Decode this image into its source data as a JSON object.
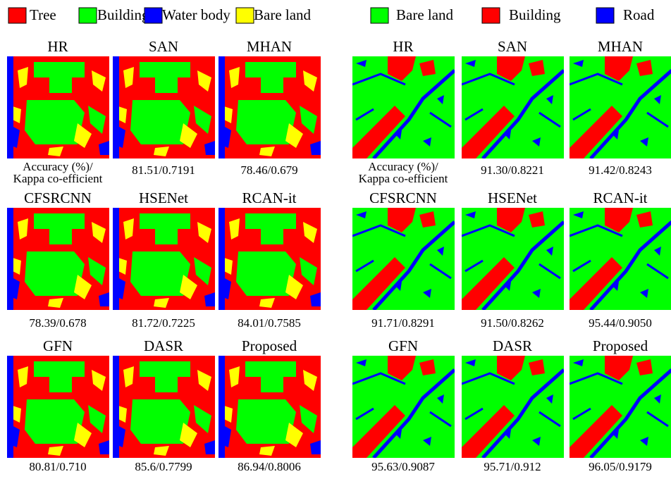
{
  "left": {
    "legend": [
      {
        "label": "Tree",
        "color": "#ff0000"
      },
      {
        "label": "Building",
        "color": "#00ff00"
      },
      {
        "label": "Water body",
        "color": "#0000ff"
      },
      {
        "label": "Bare land",
        "color": "#ffff00"
      }
    ],
    "panels": [
      {
        "title": "HR",
        "caption": [
          "Accuracy (%)/",
          "Kappa co-efficient"
        ]
      },
      {
        "title": "SAN",
        "caption": [
          "81.51/0.7191"
        ]
      },
      {
        "title": "MHAN",
        "caption": [
          "78.46/0.679"
        ]
      },
      {
        "title": "CFSRCNN",
        "caption": [
          "78.39/0.678"
        ]
      },
      {
        "title": "HSENet",
        "caption": [
          "81.72/0.7225"
        ]
      },
      {
        "title": "RCAN-it",
        "caption": [
          "84.01/0.7585"
        ]
      },
      {
        "title": "GFN",
        "caption": [
          "80.81/0.710"
        ]
      },
      {
        "title": "DASR",
        "caption": [
          "85.6/0.7799"
        ]
      },
      {
        "title": "Proposed",
        "caption": [
          "86.94/0.8006"
        ]
      }
    ]
  },
  "right": {
    "legend": [
      {
        "label": "Bare land",
        "color": "#00ff00"
      },
      {
        "label": "Building",
        "color": "#ff0000"
      },
      {
        "label": "Road",
        "color": "#0000ff"
      }
    ],
    "panels": [
      {
        "title": "HR",
        "caption": [
          "Accuracy (%)/",
          "Kappa co-efficient"
        ]
      },
      {
        "title": "SAN",
        "caption": [
          "91.30/0.8221"
        ]
      },
      {
        "title": "MHAN",
        "caption": [
          "91.42/0.8243"
        ]
      },
      {
        "title": "CFSRCNN",
        "caption": [
          "91.71/0.8291"
        ]
      },
      {
        "title": "HSENet",
        "caption": [
          "91.50/0.8262"
        ]
      },
      {
        "title": "RCAN-it",
        "caption": [
          "95.44/0.9050"
        ]
      },
      {
        "title": "GFN",
        "caption": [
          "95.63/0.9087"
        ]
      },
      {
        "title": "DASR",
        "caption": [
          "95.71/0.912"
        ]
      },
      {
        "title": "Proposed",
        "caption": [
          "96.05/0.9179"
        ]
      }
    ]
  }
}
